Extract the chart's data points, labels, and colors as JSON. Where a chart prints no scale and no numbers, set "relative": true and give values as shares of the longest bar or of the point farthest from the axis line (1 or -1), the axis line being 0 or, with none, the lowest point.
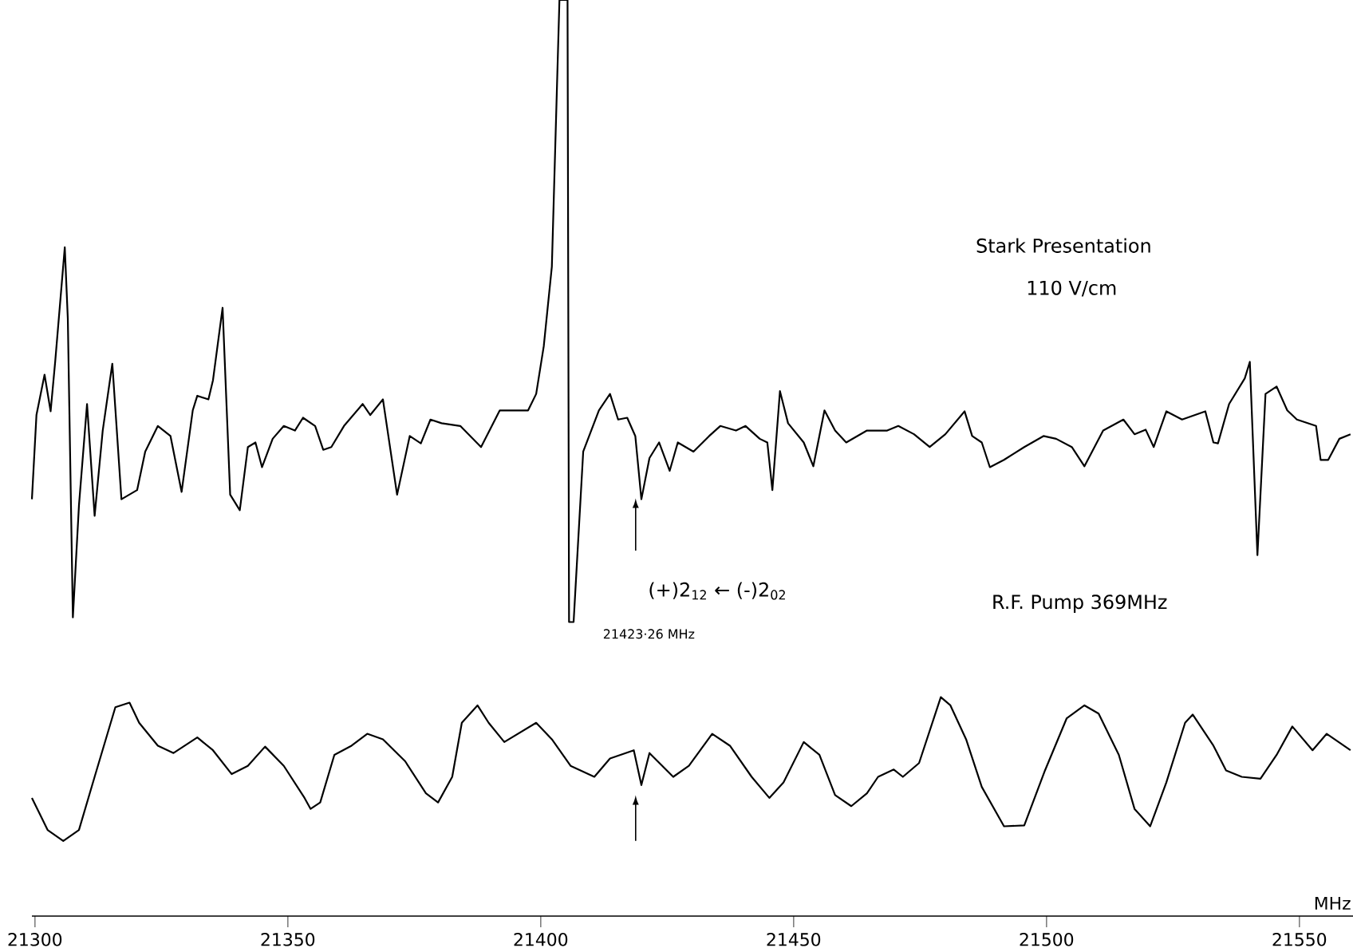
{
  "chart_data": {
    "type": "line",
    "relative": true,
    "xlabel": "MHz",
    "xlim": [
      21299.4,
      21560.6
    ],
    "xticks": [
      21300,
      21350,
      21400,
      21450,
      21500,
      21550
    ],
    "annotations": [
      "Stark Presentation",
      "110 V/cm",
      "(+)2$_{12}$ ← (-)2$_{02}$",
      "21423·26 MHz",
      "R.F. Pump   369MHz"
    ],
    "series": [
      {
        "color": "#000000",
        "x": [
          21299.4,
          21300.3,
          21301.9,
          21303.1,
          21304.0,
          21305.9,
          21306.5,
          21307.5,
          21308.7,
          21310.3,
          21311.8,
          21313.4,
          21315.3,
          21317.1,
          21320.2,
          21321.8,
          21324.3,
          21326.8,
          21329.0,
          21331.2,
          21332.1,
          21334.3,
          21335.2,
          21337.1,
          21338.6,
          21340.5,
          21342.1,
          21343.6,
          21344.9,
          21347.0,
          21349.2,
          21351.4,
          21353.0,
          21355.4,
          21357.0,
          21358.6,
          21361.1,
          21364.8,
          21366.3,
          21368.8,
          21371.6,
          21374.1,
          21376.3,
          21378.2,
          21380.4,
          21384.1,
          21388.2,
          21391.9,
          21397.5,
          21399.1,
          21400.6,
          21402.2,
          21403.7,
          21405.3,
          21405.6,
          21406.5,
          21408.4,
          21411.5,
          21413.7,
          21415.3,
          21417.1,
          21418.7,
          21419.9,
          21421.5,
          21423.4,
          21425.5,
          21427.1,
          21430.2,
          21433.3,
          21435.5,
          21438.6,
          21440.5,
          21443.3,
          21444.8,
          21445.8,
          21447.3,
          21448.9,
          21452.0,
          21453.9,
          21456.1,
          21458.2,
          21460.4,
          21464.5,
          21468.5,
          21470.7,
          21473.8,
          21476.9,
          21480.0,
          21483.8,
          21485.3,
          21487.2,
          21488.8,
          21491.6,
          21495.6,
          21499.4,
          21501.9,
          21505.0,
          21507.5,
          21511.2,
          21515.2,
          21517.4,
          21519.6,
          21521.2,
          21523.7,
          21526.8,
          21531.4,
          21533.0,
          21533.9,
          21536.1,
          21539.2,
          21540.2,
          21541.7,
          21543.3,
          21545.5,
          21547.6,
          21549.5,
          21553.3,
          21554.2,
          21555.7,
          21557.9,
          21560.1
        ],
        "values": [
          0.455,
          0.547,
          0.591,
          0.551,
          0.605,
          0.73,
          0.652,
          0.326,
          0.448,
          0.559,
          0.437,
          0.53,
          0.603,
          0.455,
          0.465,
          0.507,
          0.535,
          0.524,
          0.463,
          0.552,
          0.568,
          0.564,
          0.585,
          0.664,
          0.46,
          0.443,
          0.512,
          0.517,
          0.49,
          0.521,
          0.535,
          0.53,
          0.544,
          0.535,
          0.509,
          0.512,
          0.535,
          0.559,
          0.547,
          0.564,
          0.46,
          0.524,
          0.516,
          0.542,
          0.538,
          0.535,
          0.512,
          0.552,
          0.552,
          0.57,
          0.622,
          0.709,
          1,
          1,
          0.321,
          0.321,
          0.507,
          0.552,
          0.57,
          0.542,
          0.544,
          0.524,
          0.455,
          0.5,
          0.517,
          0.486,
          0.517,
          0.507,
          0.524,
          0.535,
          0.53,
          0.535,
          0.521,
          0.517,
          0.465,
          0.573,
          0.538,
          0.517,
          0.491,
          0.552,
          0.53,
          0.517,
          0.53,
          0.53,
          0.535,
          0.526,
          0.512,
          0.526,
          0.551,
          0.524,
          0.517,
          0.49,
          0.498,
          0.512,
          0.524,
          0.521,
          0.512,
          0.491,
          0.53,
          0.542,
          0.526,
          0.531,
          0.512,
          0.551,
          0.542,
          0.551,
          0.517,
          0.516,
          0.559,
          0.587,
          0.605,
          0.394,
          0.57,
          0.578,
          0.552,
          0.542,
          0.535,
          0.498,
          0.498,
          0.521,
          0.526
        ]
      },
      {
        "color": "#000000",
        "x": [
          21299.4,
          21302.5,
          21305.6,
          21308.7,
          21311.8,
          21315.9,
          21318.7,
          21320.6,
          21324.3,
          21327.4,
          21332.1,
          21335.2,
          21338.9,
          21342.1,
          21345.5,
          21349.2,
          21353.3,
          21354.5,
          21356.4,
          21359.2,
          21362.6,
          21365.7,
          21368.8,
          21373.2,
          21377.3,
          21379.7,
          21382.5,
          21384.4,
          21387.5,
          21389.7,
          21392.8,
          21399.1,
          21402.2,
          21405.9,
          21410.6,
          21413.7,
          21418.4,
          21419.9,
          21421.5,
          21426.2,
          21429.3,
          21433.9,
          21437.4,
          21441.7,
          21445.2,
          21448.0,
          21452.0,
          21455.1,
          21458.2,
          21461.4,
          21464.5,
          21466.7,
          21469.8,
          21471.6,
          21474.8,
          21479.1,
          21481.0,
          21484.1,
          21487.2,
          21491.6,
          21495.6,
          21499.7,
          21504.0,
          21507.5,
          21510.3,
          21514.3,
          21517.4,
          21520.5,
          21523.7,
          21527.4,
          21528.9,
          21533.0,
          21535.5,
          21538.6,
          21542.3,
          21545.5,
          21548.6,
          21552.6,
          21555.4,
          21560.1
        ],
        "values": [
          0.129,
          0.094,
          0.082,
          0.094,
          0.152,
          0.228,
          0.233,
          0.211,
          0.186,
          0.178,
          0.195,
          0.181,
          0.155,
          0.164,
          0.185,
          0.164,
          0.129,
          0.117,
          0.124,
          0.176,
          0.186,
          0.199,
          0.193,
          0.169,
          0.134,
          0.124,
          0.152,
          0.211,
          0.23,
          0.211,
          0.19,
          0.211,
          0.193,
          0.164,
          0.152,
          0.172,
          0.181,
          0.143,
          0.178,
          0.152,
          0.164,
          0.199,
          0.186,
          0.152,
          0.129,
          0.146,
          0.19,
          0.176,
          0.132,
          0.12,
          0.134,
          0.152,
          0.16,
          0.152,
          0.167,
          0.239,
          0.23,
          0.193,
          0.141,
          0.098,
          0.099,
          0.159,
          0.216,
          0.23,
          0.221,
          0.176,
          0.117,
          0.098,
          0.146,
          0.211,
          0.22,
          0.186,
          0.159,
          0.152,
          0.15,
          0.176,
          0.207,
          0.181,
          0.199,
          0.181
        ]
      }
    ]
  }
}
